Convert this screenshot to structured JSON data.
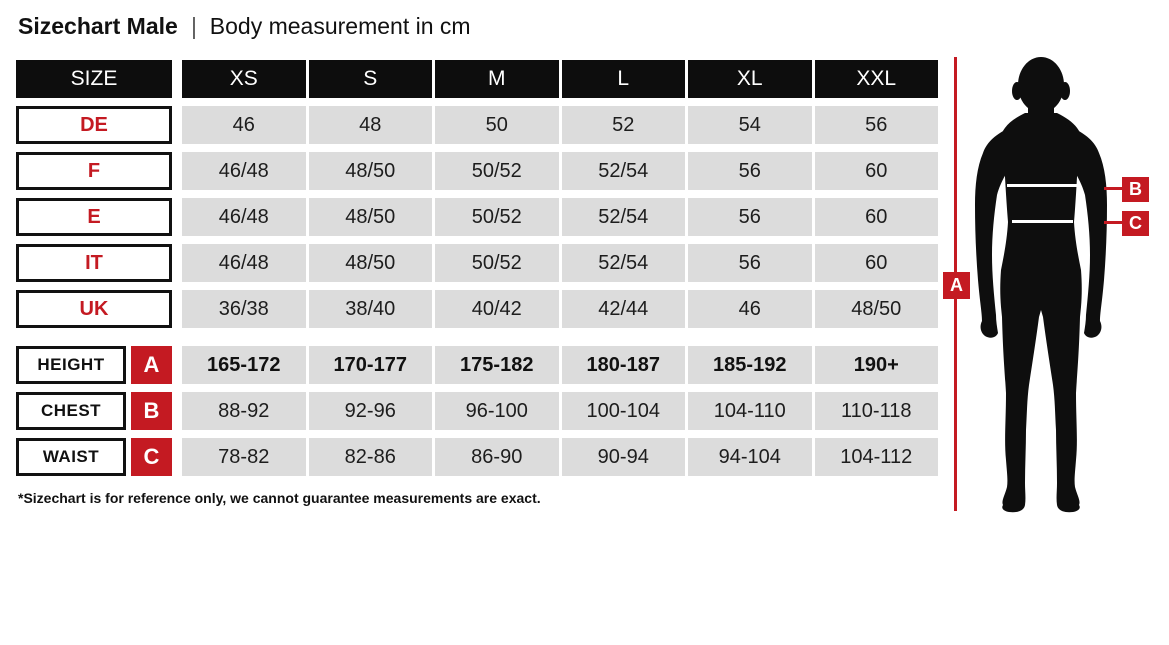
{
  "title": {
    "main": "Sizechart Male",
    "separator": "|",
    "subtitle": "Body measurement in cm"
  },
  "table": {
    "header": [
      "SIZE",
      "XS",
      "S",
      "M",
      "L",
      "XL",
      "XXL"
    ],
    "size_rows": [
      {
        "label": "DE",
        "values": [
          "46",
          "48",
          "50",
          "52",
          "54",
          "56"
        ]
      },
      {
        "label": "F",
        "values": [
          "46/48",
          "48/50",
          "50/52",
          "52/54",
          "56",
          "60"
        ]
      },
      {
        "label": "E",
        "values": [
          "46/48",
          "48/50",
          "50/52",
          "52/54",
          "56",
          "60"
        ]
      },
      {
        "label": "IT",
        "values": [
          "46/48",
          "48/50",
          "50/52",
          "52/54",
          "56",
          "60"
        ]
      },
      {
        "label": "UK",
        "values": [
          "36/38",
          "38/40",
          "40/42",
          "42/44",
          "46",
          "48/50"
        ]
      }
    ],
    "measure_rows": [
      {
        "label": "HEIGHT",
        "marker": "A",
        "bold": true,
        "values": [
          "165-172",
          "170-177",
          "175-182",
          "180-187",
          "185-192",
          "190+"
        ]
      },
      {
        "label": "CHEST",
        "marker": "B",
        "bold": false,
        "values": [
          "88-92",
          "92-96",
          "96-100",
          "100-104",
          "104-110",
          "110-118"
        ]
      },
      {
        "label": "WAIST",
        "marker": "C",
        "bold": false,
        "values": [
          "78-82",
          "82-86",
          "86-90",
          "90-94",
          "94-104",
          "104-112"
        ]
      }
    ]
  },
  "footnote": "*Sizechart is for reference only, we cannot guarantee measurements are exact.",
  "figure": {
    "markers": {
      "height": "A",
      "chest": "B",
      "waist": "C"
    }
  },
  "colors": {
    "accent_red": "#c41a22",
    "cell_gray": "#dcdcdc",
    "header_black": "#0d0d0d"
  }
}
